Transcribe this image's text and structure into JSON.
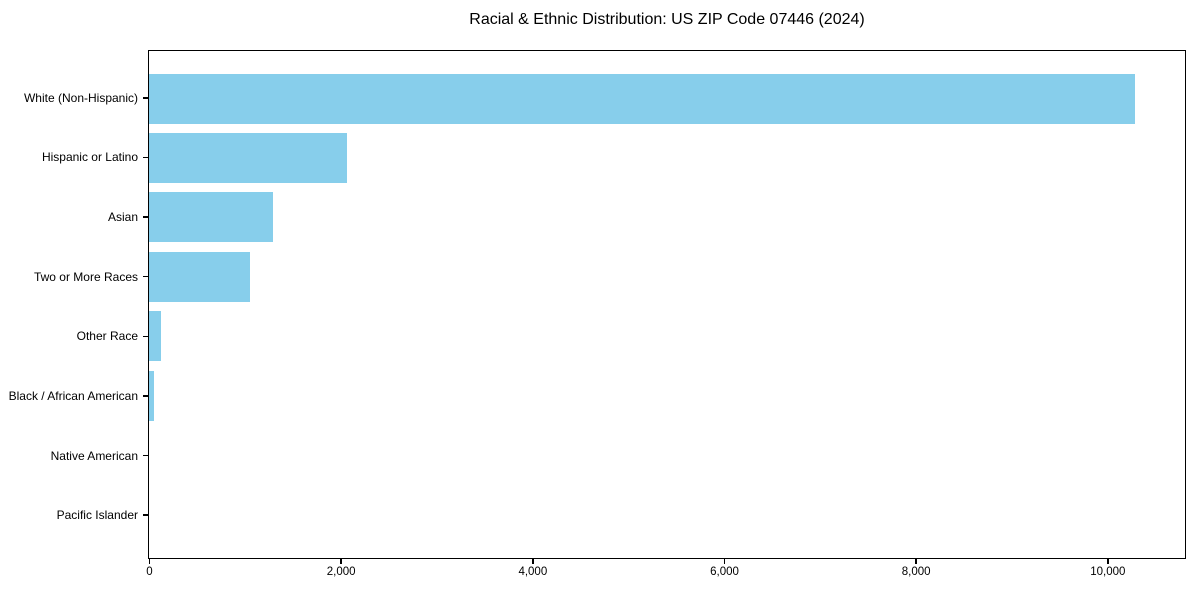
{
  "title": "Racial & Ethnic Distribution: US ZIP Code 07446 (2024)",
  "chart_data": {
    "type": "bar",
    "orientation": "horizontal",
    "title": "Racial & Ethnic Distribution: US ZIP Code 07446 (2024)",
    "categories": [
      "White (Non-Hispanic)",
      "Hispanic or Latino",
      "Asian",
      "Two or More Races",
      "Other Race",
      "Black / African American",
      "Native American",
      "Pacific Islander"
    ],
    "values": [
      10280,
      2060,
      1290,
      1050,
      125,
      50,
      0,
      0
    ],
    "xlabel": "",
    "ylabel": "",
    "xlim": [
      0,
      10800
    ],
    "x_ticks": [
      0,
      2000,
      4000,
      6000,
      8000,
      10000
    ],
    "x_tick_labels": [
      "0",
      "2,000",
      "4,000",
      "6,000",
      "8,000",
      "10,000"
    ],
    "bar_color": "#87CEEB",
    "grid": false,
    "legend": null
  },
  "colors": {
    "bar": "#87CEEB",
    "axis": "#000000",
    "background": "#FFFFFF",
    "text": "#000000"
  }
}
